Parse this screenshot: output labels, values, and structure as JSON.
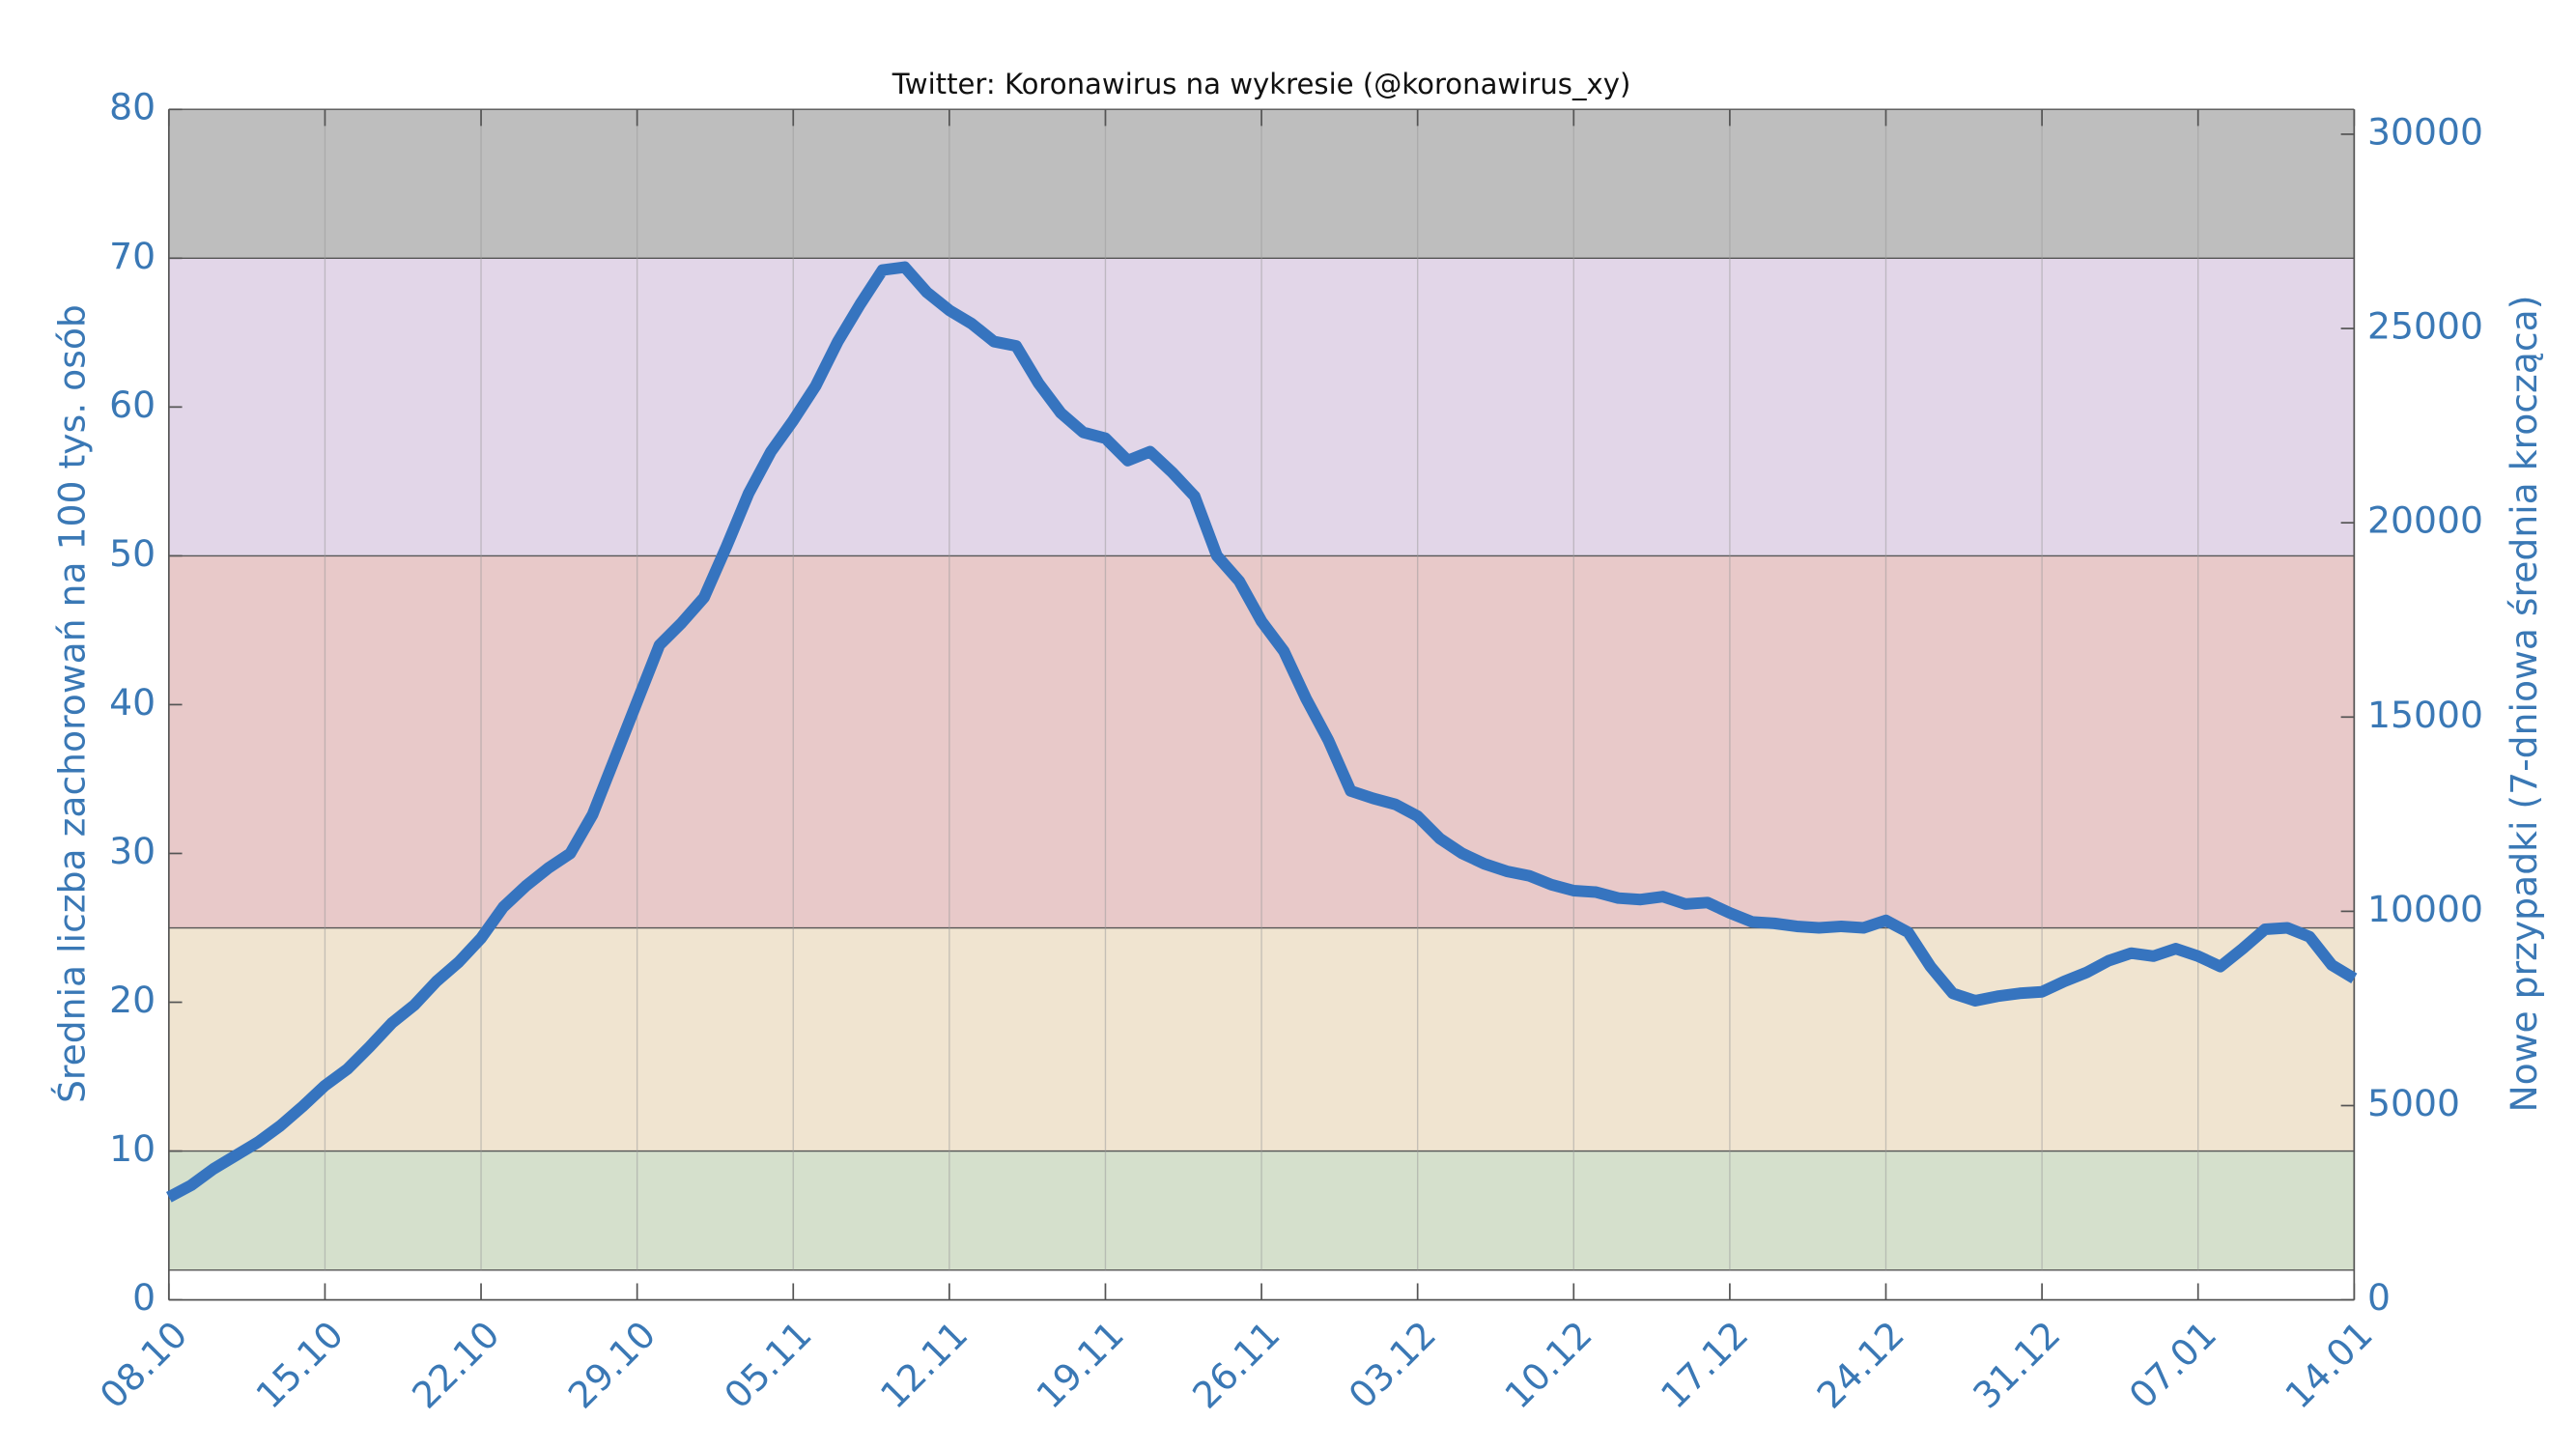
{
  "chart_data": {
    "type": "line",
    "title": "Twitter: Koronawirus na wykresie (@koronawirus_xy)",
    "y_label": "Średnia liczba zachorowań na 100 tys. osób",
    "y2_label": "Nowe przypadki (7-dniowa średnia krocząca)",
    "categories": [
      "08.10",
      null,
      null,
      null,
      null,
      null,
      null,
      "15.10",
      null,
      null,
      null,
      null,
      null,
      null,
      "22.10",
      null,
      null,
      null,
      null,
      null,
      null,
      "29.10",
      null,
      null,
      null,
      null,
      null,
      null,
      "05.11",
      null,
      null,
      null,
      null,
      null,
      null,
      "12.11",
      null,
      null,
      null,
      null,
      null,
      null,
      "19.11",
      null,
      null,
      null,
      null,
      null,
      null,
      "26.11",
      null,
      null,
      null,
      null,
      null,
      null,
      "03.12",
      null,
      null,
      null,
      null,
      null,
      null,
      "10.12",
      null,
      null,
      null,
      null,
      null,
      null,
      "17.12",
      null,
      null,
      null,
      null,
      null,
      null,
      "24.12",
      null,
      null,
      null,
      null,
      null,
      null,
      "31.12",
      null,
      null,
      null,
      null,
      null,
      null,
      "07.01",
      null,
      null,
      null,
      null,
      null,
      null,
      "14.01"
    ],
    "series": [
      {
        "color": "#3674bf",
        "values": [
          6.9,
          7.7,
          8.8,
          9.7,
          10.6,
          11.7,
          13.0,
          14.4,
          15.5,
          17.0,
          18.6,
          19.8,
          21.4,
          22.7,
          24.3,
          26.4,
          27.8,
          29.0,
          30.0,
          32.6,
          36.4,
          40.2,
          44.0,
          45.5,
          47.2,
          50.6,
          54.2,
          57.0,
          59.1,
          61.4,
          64.4,
          66.9,
          69.2,
          69.4,
          67.7,
          66.5,
          65.6,
          64.4,
          64.1,
          61.6,
          59.6,
          58.3,
          57.9,
          56.4,
          57.0,
          55.6,
          54.0,
          50.0,
          48.3,
          45.6,
          43.6,
          40.4,
          37.6,
          34.2,
          33.7,
          33.3,
          32.5,
          31.0,
          30.0,
          29.3,
          28.8,
          28.5,
          27.9,
          27.5,
          27.4,
          27.0,
          26.9,
          27.1,
          26.6,
          26.7,
          26.0,
          25.4,
          25.3,
          25.1,
          25.0,
          25.1,
          25.0,
          25.5,
          24.7,
          22.4,
          20.6,
          20.1,
          20.4,
          20.6,
          20.7,
          21.4,
          22.0,
          22.8,
          23.3,
          23.1,
          23.6,
          23.1,
          22.4,
          23.6,
          24.9,
          25.0,
          24.4,
          22.5,
          21.6
        ]
      }
    ],
    "ylim": [
      0,
      80
    ],
    "yticks": [
      0,
      10,
      20,
      30,
      40,
      50,
      60,
      70,
      80
    ],
    "y2lim": [
      0,
      30639
    ],
    "y2ticks": [
      0,
      5000,
      10000,
      15000,
      20000,
      25000,
      30000
    ],
    "bands": [
      {
        "range": [
          2,
          10
        ],
        "color": "#d5e0cc"
      },
      {
        "range": [
          10,
          25
        ],
        "color": "#f0e4d0"
      },
      {
        "range": [
          25,
          50
        ],
        "color": "#e8c9c9"
      },
      {
        "range": [
          50,
          70
        ],
        "color": "#e2d6e8"
      },
      {
        "range": [
          70,
          80
        ],
        "color": "#bebebe"
      }
    ],
    "grid": true
  }
}
